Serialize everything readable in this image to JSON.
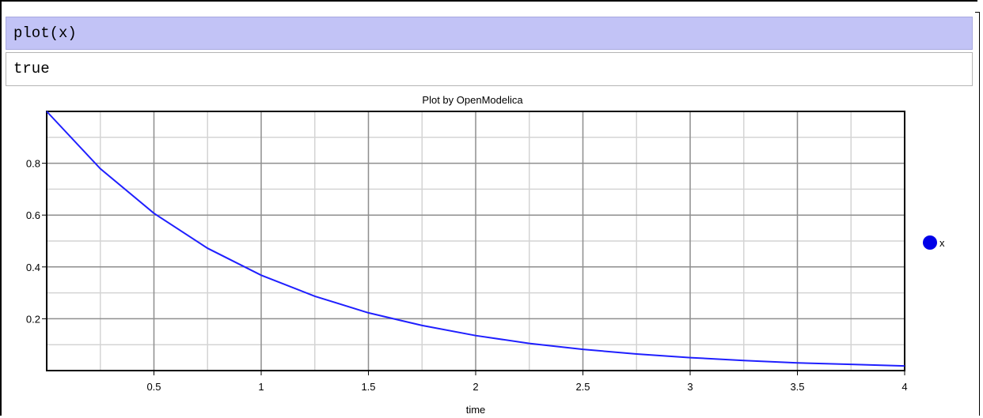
{
  "notebook": {
    "input_code": "plot(x)",
    "output_text": "true"
  },
  "chart_data": {
    "type": "line",
    "title": "Plot by OpenModelica",
    "xlabel": "time",
    "ylabel": "",
    "xlim": [
      0,
      4
    ],
    "ylim": [
      0,
      1
    ],
    "xticks": [
      "0.5",
      "1",
      "1.5",
      "2",
      "2.5",
      "3",
      "3.5",
      "4"
    ],
    "yticks": [
      "0.2",
      "0.4",
      "0.6",
      "0.8"
    ],
    "grid": true,
    "legend_position": "right",
    "series": [
      {
        "name": "x",
        "color": "#1f1fff",
        "x": [
          0,
          0.25,
          0.5,
          0.75,
          1,
          1.25,
          1.5,
          1.75,
          2,
          2.25,
          2.5,
          2.75,
          3,
          3.25,
          3.5,
          3.75,
          4
        ],
        "y": [
          1.0,
          0.779,
          0.607,
          0.472,
          0.368,
          0.287,
          0.223,
          0.174,
          0.135,
          0.105,
          0.082,
          0.064,
          0.05,
          0.039,
          0.03,
          0.024,
          0.018
        ]
      }
    ]
  }
}
